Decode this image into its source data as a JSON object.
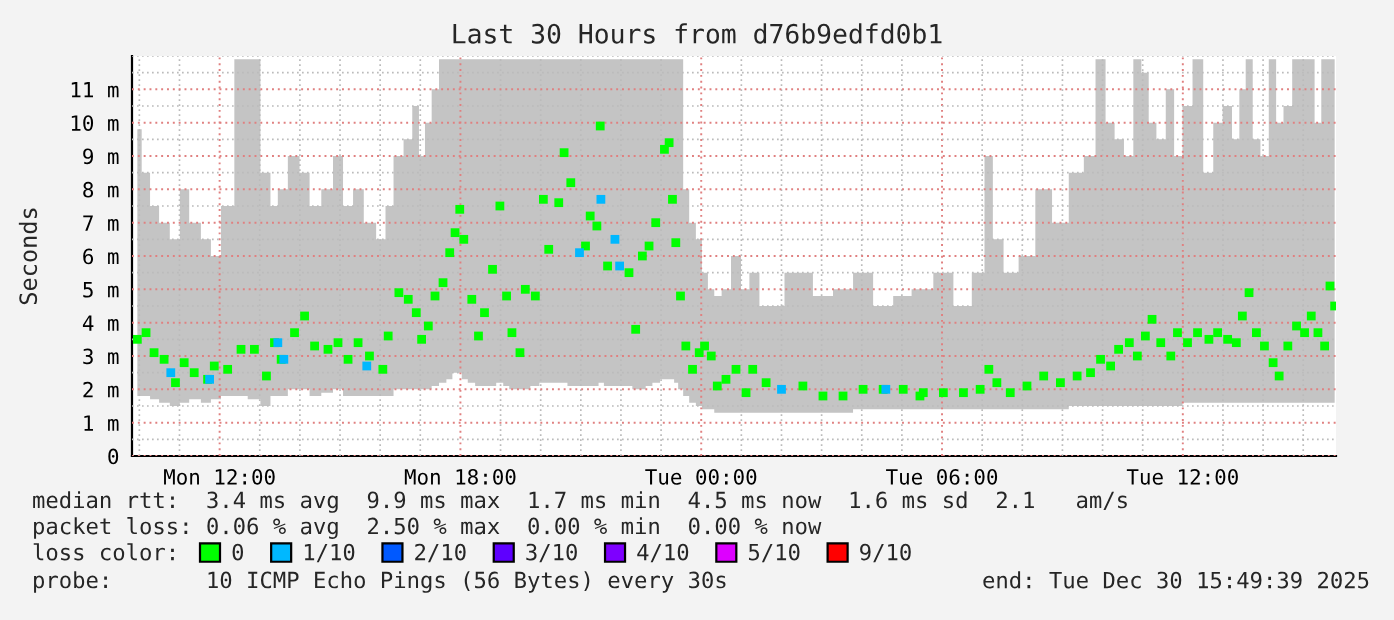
{
  "chart_data": {
    "type": "scatter",
    "title": "Last 30 Hours from d76b9edfd0b1",
    "ylabel": "Seconds",
    "xlim": [
      "2025-12-29T09:49",
      "2025-12-30T15:49"
    ],
    "xticks": [
      {
        "value": "2025-12-29T12:00",
        "label": "Mon 12:00"
      },
      {
        "value": "2025-12-29T18:00",
        "label": "Mon 18:00"
      },
      {
        "value": "2025-12-30T00:00",
        "label": "Tue 00:00"
      },
      {
        "value": "2025-12-30T06:00",
        "label": "Tue 06:00"
      },
      {
        "value": "2025-12-30T12:00",
        "label": "Tue 12:00"
      }
    ],
    "ylim": [
      0,
      12
    ],
    "yticks": [
      0,
      {
        "value": 1,
        "label": "1 m"
      },
      {
        "value": 2,
        "label": "2 m"
      },
      {
        "value": 3,
        "label": "3 m"
      },
      {
        "value": 4,
        "label": "4 m"
      },
      {
        "value": 5,
        "label": "5 m"
      },
      {
        "value": 6,
        "label": "6 m"
      },
      {
        "value": 7,
        "label": "7 m"
      },
      {
        "value": 8,
        "label": "8 m"
      },
      {
        "value": 9,
        "label": "9 m"
      },
      {
        "value": 10,
        "label": "10 m"
      },
      {
        "value": 11,
        "label": "11 m"
      }
    ],
    "grid": true,
    "marker": "square",
    "legend": "bottom",
    "legend_title": "loss color:",
    "series": [
      {
        "name": "0",
        "color": "#00ff00",
        "x": [
          "2025-12-29T09:57",
          "2025-12-29T10:10",
          "2025-12-29T10:22",
          "2025-12-29T10:37",
          "2025-12-29T10:54",
          "2025-12-29T11:07",
          "2025-12-29T11:22",
          "2025-12-29T11:42",
          "2025-12-29T11:52",
          "2025-12-29T12:12",
          "2025-12-29T12:32",
          "2025-12-29T12:52",
          "2025-12-29T13:10",
          "2025-12-29T13:22",
          "2025-12-29T13:32",
          "2025-12-29T13:52",
          "2025-12-29T14:07",
          "2025-12-29T14:22",
          "2025-12-29T14:42",
          "2025-12-29T14:57",
          "2025-12-29T15:12",
          "2025-12-29T15:27",
          "2025-12-29T15:44",
          "2025-12-29T16:04",
          "2025-12-29T16:12",
          "2025-12-29T16:28",
          "2025-12-29T16:42",
          "2025-12-29T16:54",
          "2025-12-29T17:02",
          "2025-12-29T17:12",
          "2025-12-29T17:22",
          "2025-12-29T17:34",
          "2025-12-29T17:44",
          "2025-12-29T17:52",
          "2025-12-29T17:59",
          "2025-12-29T18:05",
          "2025-12-29T18:17",
          "2025-12-29T18:27",
          "2025-12-29T18:36",
          "2025-12-29T18:48",
          "2025-12-29T18:59",
          "2025-12-29T19:09",
          "2025-12-29T19:17",
          "2025-12-29T19:29",
          "2025-12-29T19:37",
          "2025-12-29T19:52",
          "2025-12-29T20:04",
          "2025-12-29T20:12",
          "2025-12-29T20:27",
          "2025-12-29T20:35",
          "2025-12-29T20:45",
          "2025-12-29T21:07",
          "2025-12-29T21:14",
          "2025-12-29T21:24",
          "2025-12-29T21:29",
          "2025-12-29T21:40",
          "2025-12-29T22:12",
          "2025-12-29T22:22",
          "2025-12-29T22:32",
          "2025-12-29T22:42",
          "2025-12-29T22:52",
          "2025-12-29T23:05",
          "2025-12-29T23:12",
          "2025-12-29T23:17",
          "2025-12-29T23:22",
          "2025-12-29T23:29",
          "2025-12-29T23:37",
          "2025-12-29T23:47",
          "2025-12-29T23:57",
          "2025-12-30T00:05",
          "2025-12-30T00:15",
          "2025-12-30T00:24",
          "2025-12-30T00:37",
          "2025-12-30T00:52",
          "2025-12-30T01:07",
          "2025-12-30T01:17",
          "2025-12-30T01:37",
          "2025-12-30T02:32",
          "2025-12-30T03:02",
          "2025-12-30T03:32",
          "2025-12-30T04:02",
          "2025-12-30T04:32",
          "2025-12-30T05:02",
          "2025-12-30T05:27",
          "2025-12-30T05:32",
          "2025-12-30T06:02",
          "2025-12-30T06:32",
          "2025-12-30T06:57",
          "2025-12-30T07:10",
          "2025-12-30T07:22",
          "2025-12-30T07:42",
          "2025-12-30T08:07",
          "2025-12-30T08:32",
          "2025-12-30T08:57",
          "2025-12-30T09:22",
          "2025-12-30T09:42",
          "2025-12-30T09:57",
          "2025-12-30T10:12",
          "2025-12-30T10:24",
          "2025-12-30T10:40",
          "2025-12-30T10:52",
          "2025-12-30T11:04",
          "2025-12-30T11:14",
          "2025-12-30T11:27",
          "2025-12-30T11:42",
          "2025-12-30T11:52",
          "2025-12-30T12:07",
          "2025-12-30T12:22",
          "2025-12-30T12:39",
          "2025-12-30T12:52",
          "2025-12-30T13:07",
          "2025-12-30T13:20",
          "2025-12-30T13:29",
          "2025-12-30T13:39",
          "2025-12-30T13:50",
          "2025-12-30T14:02",
          "2025-12-30T14:15",
          "2025-12-30T14:24",
          "2025-12-30T14:37",
          "2025-12-30T14:50",
          "2025-12-30T15:02",
          "2025-12-30T15:12",
          "2025-12-30T15:22",
          "2025-12-30T15:32",
          "2025-12-30T15:40",
          "2025-12-30T15:47"
        ],
        "values": [
          3.5,
          3.7,
          3.1,
          2.9,
          2.2,
          2.8,
          2.5,
          2.3,
          2.7,
          2.6,
          3.2,
          3.2,
          2.4,
          3.4,
          2.9,
          3.7,
          4.2,
          3.3,
          3.2,
          3.4,
          2.9,
          3.4,
          3.0,
          2.6,
          3.6,
          4.9,
          4.7,
          4.3,
          3.5,
          3.9,
          4.8,
          5.2,
          6.1,
          6.7,
          7.4,
          6.5,
          4.7,
          3.6,
          4.3,
          5.6,
          7.5,
          4.8,
          3.7,
          3.1,
          5.0,
          4.8,
          7.7,
          6.2,
          7.6,
          9.1,
          8.2,
          6.3,
          7.2,
          6.9,
          9.9,
          5.7,
          5.5,
          3.8,
          6.0,
          6.3,
          7.0,
          9.2,
          9.4,
          7.7,
          6.4,
          4.8,
          3.3,
          2.6,
          3.1,
          3.3,
          3.0,
          2.1,
          2.3,
          2.6,
          1.9,
          2.6,
          2.2,
          2.1,
          1.8,
          1.8,
          2.0,
          2.0,
          2.0,
          1.8,
          1.9,
          1.9,
          1.9,
          2.0,
          2.6,
          2.2,
          1.9,
          2.1,
          2.4,
          2.2,
          2.4,
          2.5,
          2.9,
          2.7,
          3.2,
          3.4,
          3.0,
          3.6,
          4.1,
          3.4,
          3.0,
          3.7,
          3.4,
          3.7,
          3.5,
          3.7,
          3.5,
          3.4,
          4.2,
          4.9,
          3.7,
          3.3,
          2.8,
          2.4,
          3.3,
          3.9,
          3.7,
          4.2,
          3.7,
          3.3,
          5.1,
          4.5
        ],
        "lower": [
          1.8,
          1.8,
          1.7,
          1.6,
          1.5,
          1.6,
          1.7,
          1.6,
          1.7,
          1.8,
          1.8,
          1.7,
          1.5,
          1.8,
          1.8,
          2.0,
          2.0,
          1.8,
          1.9,
          2.0,
          1.8,
          1.8,
          1.8,
          1.8,
          1.8,
          2.0,
          2.0,
          2.0,
          2.0,
          2.0,
          2.1,
          2.2,
          2.3,
          2.5,
          2.5,
          2.3,
          2.2,
          2.1,
          2.1,
          2.1,
          2.2,
          2.1,
          2.0,
          2.0,
          2.0,
          2.1,
          2.2,
          2.2,
          2.2,
          2.2,
          2.1,
          2.1,
          2.1,
          2.1,
          2.2,
          2.1,
          2.1,
          2.0,
          2.0,
          2.1,
          2.2,
          2.3,
          2.3,
          2.3,
          2.2,
          2.0,
          1.8,
          1.6,
          1.5,
          1.4,
          1.4,
          1.3,
          1.3,
          1.3,
          1.3,
          1.3,
          1.3,
          1.3,
          1.3,
          1.3,
          1.4,
          1.4,
          1.4,
          1.4,
          1.4,
          1.4,
          1.4,
          1.4,
          1.4,
          1.4,
          1.4,
          1.4,
          1.4,
          1.4,
          1.5,
          1.5,
          1.5,
          1.5,
          1.5,
          1.5,
          1.5,
          1.5,
          1.5,
          1.5,
          1.5,
          1.5,
          1.6,
          1.6,
          1.6,
          1.6,
          1.6,
          1.6,
          1.6,
          1.6,
          1.6,
          1.6,
          1.6,
          1.6,
          1.6,
          1.6,
          1.6,
          1.6,
          1.6,
          1.6,
          1.6,
          1.6
        ],
        "upper": [
          9.8,
          8.5,
          7.5,
          7.0,
          6.5,
          8.0,
          7.0,
          6.5,
          6.0,
          7.5,
          11.9,
          11.9,
          8.5,
          7.5,
          8.0,
          9.0,
          8.5,
          7.5,
          8.0,
          9.0,
          7.5,
          8.0,
          7.0,
          6.5,
          7.5,
          9.0,
          9.5,
          10.5,
          9.0,
          10.0,
          11.0,
          11.9,
          11.9,
          11.9,
          11.9,
          11.9,
          11.9,
          11.9,
          11.9,
          11.9,
          11.9,
          11.9,
          11.9,
          11.9,
          11.9,
          11.9,
          11.9,
          11.9,
          11.9,
          11.9,
          11.9,
          11.9,
          11.9,
          11.9,
          11.9,
          11.9,
          11.9,
          11.9,
          11.9,
          11.9,
          11.9,
          11.9,
          11.9,
          11.9,
          11.9,
          11.9,
          8.0,
          7.0,
          6.5,
          5.5,
          5.0,
          4.8,
          5.0,
          6.0,
          5.0,
          5.5,
          4.5,
          5.5,
          4.8,
          5.0,
          5.5,
          4.5,
          4.8,
          5.0,
          5.0,
          5.5,
          4.5,
          5.5,
          9.0,
          6.5,
          5.5,
          6.0,
          8.0,
          7.0,
          8.5,
          9.0,
          11.9,
          10.0,
          9.5,
          9.0,
          11.9,
          11.5,
          10.0,
          9.5,
          11.0,
          9.0,
          10.5,
          11.9,
          8.5,
          10.0,
          10.5,
          9.5,
          11.0,
          11.9,
          9.5,
          9.0,
          11.9,
          10.0,
          10.5,
          11.9,
          11.9,
          11.9,
          10.0,
          11.9,
          11.9,
          11.9
        ]
      },
      {
        "name": "1/10",
        "color": "#00b8ff",
        "x": [
          "2025-12-29T10:47",
          "2025-12-29T11:45",
          "2025-12-29T13:27",
          "2025-12-29T13:36",
          "2025-12-29T15:40",
          "2025-12-29T20:58",
          "2025-12-29T21:30",
          "2025-12-29T21:51",
          "2025-12-29T21:58",
          "2025-12-30T02:00",
          "2025-12-30T04:36"
        ],
        "values": [
          2.5,
          2.3,
          3.4,
          2.9,
          2.7,
          6.1,
          7.7,
          6.5,
          5.7,
          2.0,
          2.0
        ]
      },
      {
        "name": "2/10",
        "color": "#0059ff"
      },
      {
        "name": "3/10",
        "color": "#5e00ff"
      },
      {
        "name": "4/10",
        "color": "#7e00ff"
      },
      {
        "name": "5/10",
        "color": "#dd00ff"
      },
      {
        "name": "9/10",
        "color": "#ff0000"
      }
    ],
    "annotations": [
      "median rtt:  3.4 ms avg  9.9 ms max  1.7 ms min  4.5 ms now  1.6 ms sd  2.1   am/s",
      "packet loss: 0.06 % avg  2.50 % max  0.00 % min  0.00 % now",
      "probe:       10 ICMP Echo Pings (56 Bytes) every 30s",
      "end: Tue Dec 30 15:49:39 2025"
    ]
  }
}
